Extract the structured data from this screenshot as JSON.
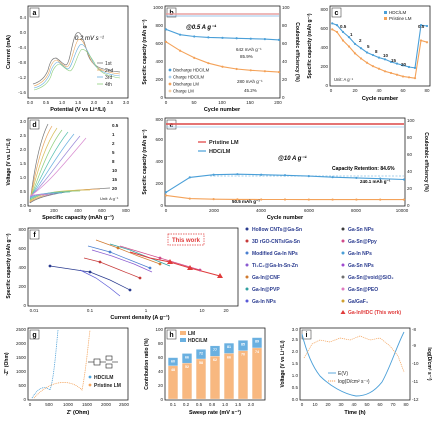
{
  "panels": {
    "a": {
      "letter": "a",
      "ylabel": "Current (mA)",
      "xlabel": "Potential (V vs Li⁺/Li)",
      "scan_rate": "0.2 mV s⁻¹",
      "legend": [
        "1st",
        "2nd",
        "3rd",
        "4th"
      ],
      "xticks": [
        "0.0",
        "0.5",
        "1.0",
        "1.5",
        "2.0",
        "2.5",
        "3.0"
      ],
      "yticks": [
        "-1.6",
        "-1.2",
        "-0.8",
        "-0.4",
        "0.0",
        "0.4"
      ]
    },
    "b": {
      "letter": "b",
      "ylabel": "Specific capacity (mAh g⁻¹)",
      "ylabel2": "Coulombic efficiency (%)",
      "xlabel": "Cycle number",
      "rate": "@0.5 A g⁻¹",
      "annotations": [
        "642 mAh g⁻¹",
        "85.9%",
        "280 mAh g⁻¹",
        "45.2%"
      ],
      "legend": [
        "Discharge HDC/LM",
        "Charge HDC/LM",
        "Discharge LM",
        "Charge LM"
      ],
      "xticks": [
        "0",
        "50",
        "100",
        "150",
        "200"
      ],
      "yticks": [
        "0",
        "200",
        "400",
        "600",
        "800",
        "1000"
      ],
      "y2ticks": [
        "0",
        "20",
        "40",
        "60",
        "80",
        "100"
      ]
    },
    "c": {
      "letter": "c",
      "ylabel": "Specific capacity (mAh g⁻¹)",
      "xlabel": "Cycle number",
      "legend": [
        "HDC/LM",
        "Pristine LM"
      ],
      "unit": "Unit: A g⁻¹",
      "rates": [
        "0.5",
        "1",
        "2",
        "5",
        "8",
        "10",
        "15",
        "20",
        "0.5"
      ],
      "xticks": [
        "0",
        "20",
        "40",
        "60",
        "80"
      ],
      "yticks": [
        "0",
        "200",
        "400",
        "600",
        "800"
      ]
    },
    "d": {
      "letter": "d",
      "ylabel": "Voltage (V vs Li⁺/Li)",
      "xlabel": "Specific capacity (mAh g⁻¹)",
      "rates": [
        "0.5",
        "1",
        "2",
        "5",
        "8",
        "10",
        "15",
        "20"
      ],
      "unit": "Unit: A g⁻¹",
      "xticks": [
        "0",
        "200",
        "400",
        "600",
        "800"
      ],
      "yticks": [
        "0.0",
        "0.5",
        "1.0",
        "1.5",
        "2.0",
        "2.5",
        "3.0"
      ]
    },
    "e": {
      "letter": "e",
      "ylabel": "Specific capacity (mAh g⁻¹)",
      "ylabel2": "Coulombic efficiency (%)",
      "xlabel": "Cycle number",
      "legend": [
        "Pristine LM",
        "HDC/LM"
      ],
      "rate": "@10 A g⁻¹",
      "retention": "Capacity Retention: 84.6%",
      "annotations": [
        "50.5 mAh g⁻¹",
        "240.1 mAh g⁻¹"
      ],
      "xticks": [
        "0",
        "2000",
        "4000",
        "6000",
        "8000",
        "10000"
      ],
      "yticks": [
        "0",
        "200",
        "400",
        "600",
        "800"
      ],
      "y2ticks": [
        "0",
        "20",
        "40",
        "60",
        "80",
        "100"
      ]
    },
    "f": {
      "letter": "f",
      "ylabel": "Specific capacity (mAh g⁻¹)",
      "xlabel": "Current density (A g⁻¹)",
      "this_work": "This work",
      "xticks": [
        "0.01",
        "0.1",
        "1",
        "10",
        "20"
      ],
      "yticks": [
        "0",
        "200",
        "400",
        "600",
        "800"
      ],
      "legend_left": [
        "Hollow CNTs@Ga-Sn",
        "3D rGO-CNTs/Ga-Sn",
        "Modified Ga-In NPs",
        "Ti₃C₂@Ga-In-Sn-Zn",
        "Ga-In@CNF",
        "Ga-In@PVP",
        "Ga-In NPs"
      ],
      "legend_right": [
        "Ga-Sn NPs",
        "Ga-Sn@Ppy",
        "Ga-In NPs",
        "Ga-Sn NPs",
        "Ga-Sn@void@SiO₂",
        "Ga-Sn@PEO",
        "Ga/GaF₃",
        "Ga-In/HDC (This work)"
      ]
    },
    "g": {
      "letter": "g",
      "ylabel": "-Z'' (Ohm)",
      "xlabel": "Z' (Ohm)",
      "legend": [
        "HDC/LM",
        "Pristine LM"
      ],
      "xticks": [
        "0",
        "500",
        "1000",
        "1500",
        "2000",
        "2500"
      ],
      "yticks": [
        "0",
        "500",
        "1000",
        "1500",
        "2000",
        "2500"
      ]
    },
    "h": {
      "letter": "h",
      "ylabel": "Contribution ratio (%)",
      "xlabel": "Sweep rate (mV s⁻¹)",
      "legend": [
        "LM",
        "HDC/LM"
      ],
      "xticks": [
        "0.1",
        "0.2",
        "0.5",
        "0.8",
        "1.0",
        "1.5",
        "2.0"
      ],
      "yticks": [
        "0",
        "20",
        "40",
        "60",
        "80",
        "100"
      ]
    },
    "i": {
      "letter": "i",
      "ylabel": "Voltage (V vs Li⁺/Li)",
      "ylabel2": "log(D/cm² s⁻¹)",
      "xlabel": "Time (h)",
      "legend": [
        "E(V)",
        "log(D/cm² s⁻¹)"
      ],
      "xticks": [
        "0",
        "10",
        "20",
        "30",
        "40",
        "50",
        "60",
        "70",
        "80"
      ],
      "yticks": [
        "0.0",
        "0.5",
        "1.0",
        "1.5",
        "2.0",
        "2.5",
        "3.0"
      ],
      "y2ticks": [
        "-12",
        "-11",
        "-10",
        "-9",
        "-8"
      ]
    }
  },
  "colors": {
    "orange": "#f4a259",
    "blue": "#4a9fd8",
    "red": "#e03b3b",
    "pink": "#f2a0a0",
    "lightblue": "#a8cfee",
    "frame": "#222222"
  },
  "chart_data": [
    {
      "panel": "b",
      "type": "line",
      "x": [
        0,
        25,
        50,
        75,
        100,
        125,
        150,
        175,
        200
      ],
      "series": [
        {
          "name": "Discharge HDC/LM",
          "values": [
            760,
            700,
            680,
            670,
            665,
            660,
            655,
            650,
            642
          ]
        },
        {
          "name": "Discharge LM",
          "values": [
            620,
            520,
            440,
            380,
            340,
            315,
            300,
            290,
            280
          ]
        }
      ],
      "ylim": [
        0,
        1000
      ]
    },
    {
      "panel": "c",
      "type": "line",
      "x": [
        1,
        5,
        10,
        15,
        20,
        25,
        30,
        35,
        40,
        45,
        50,
        55,
        60,
        65,
        70,
        75,
        80
      ],
      "series": [
        {
          "name": "HDC/LM",
          "values": [
            720,
            700,
            620,
            560,
            480,
            430,
            380,
            350,
            320,
            300,
            270,
            250,
            230,
            210,
            200,
            700,
            690
          ]
        },
        {
          "name": "Pristine LM",
          "values": [
            650,
            620,
            520,
            450,
            370,
            310,
            260,
            220,
            190,
            160,
            140,
            120,
            100,
            90,
            80,
            520,
            500
          ]
        }
      ],
      "ylim": [
        0,
        900
      ]
    },
    {
      "panel": "e",
      "type": "line",
      "x": [
        0,
        1000,
        2000,
        3000,
        4000,
        5000,
        6000,
        7000,
        8000,
        9000,
        10000
      ],
      "series": [
        {
          "name": "HDC/LM",
          "values": [
            120,
            260,
            285,
            290,
            285,
            280,
            272,
            262,
            255,
            248,
            240.1
          ]
        },
        {
          "name": "Pristine LM",
          "values": [
            90,
            60,
            55,
            53,
            52,
            52,
            51,
            51,
            51,
            50.5,
            50.5
          ]
        }
      ],
      "ylim": [
        0,
        800
      ]
    },
    {
      "panel": "h",
      "type": "bar",
      "categories": [
        "0.1",
        "0.2",
        "0.5",
        "0.8",
        "1.0",
        "1.5",
        "2.0"
      ],
      "series": [
        {
          "name": "LM",
          "values": [
            48,
            52,
            58,
            62,
            66,
            70,
            74
          ]
        },
        {
          "name": "HDC/LM",
          "values": [
            60,
            66,
            72,
            77,
            81,
            85,
            89
          ]
        }
      ],
      "ylim": [
        0,
        100
      ]
    }
  ]
}
